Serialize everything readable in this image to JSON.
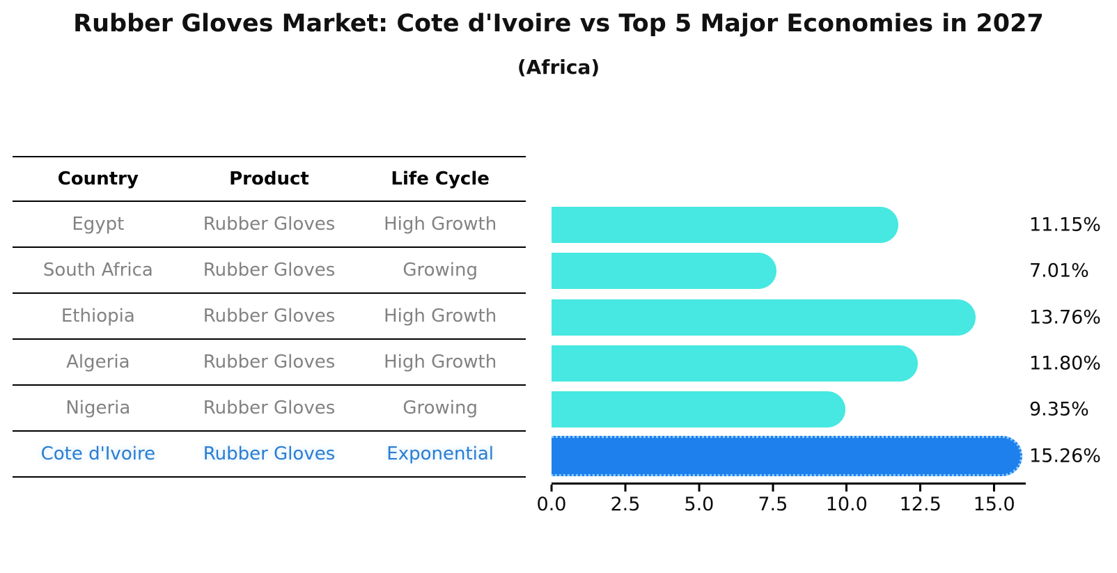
{
  "title": "Rubber Gloves Market: Cote d'Ivoire vs Top 5 Major Economies in 2027",
  "subtitle": "(Africa)",
  "table": {
    "headers": [
      "Country",
      "Product",
      "Life Cycle"
    ],
    "rows": [
      {
        "country": "Egypt",
        "product": "Rubber Gloves",
        "life_cycle": "High Growth"
      },
      {
        "country": "South Africa",
        "product": "Rubber Gloves",
        "life_cycle": "Growing"
      },
      {
        "country": "Ethiopia",
        "product": "Rubber Gloves",
        "life_cycle": "High Growth"
      },
      {
        "country": "Algeria",
        "product": "Rubber Gloves",
        "life_cycle": "High Growth"
      },
      {
        "country": "Nigeria",
        "product": "Rubber Gloves",
        "life_cycle": "Growing"
      },
      {
        "country": "Cote d'Ivoire",
        "product": "Rubber Gloves",
        "life_cycle": "Exponential"
      }
    ]
  },
  "chart_data": {
    "type": "bar",
    "orientation": "horizontal",
    "title": "Rubber Gloves Market: Cote d'Ivoire vs Top 5 Major Economies in 2027",
    "subtitle": "(Africa)",
    "categories": [
      "Egypt",
      "South Africa",
      "Ethiopia",
      "Algeria",
      "Nigeria",
      "Cote d'Ivoire"
    ],
    "values": [
      11.15,
      7.01,
      13.76,
      11.8,
      9.35,
      15.26
    ],
    "value_labels": [
      "11.15%",
      "7.01%",
      "13.76%",
      "11.80%",
      "9.35%",
      "15.26%"
    ],
    "xlim": [
      0,
      16
    ],
    "xticks": [
      0,
      2.5,
      5,
      7.5,
      10,
      12.5,
      15
    ],
    "xtick_labels": [
      "0.0",
      "2.5",
      "5.0",
      "7.5",
      "10.0",
      "12.5",
      "15.0"
    ],
    "highlight_index": 5,
    "grid": false,
    "legend": false
  },
  "colors": {
    "bar": "#46e8e1",
    "highlight_bar": "#1e80ec",
    "highlight_outline": "#8ecdff",
    "row_text": "#828282",
    "highlight_text": "#2a7dd2",
    "axis": "#000000",
    "title_text": "#111111"
  }
}
